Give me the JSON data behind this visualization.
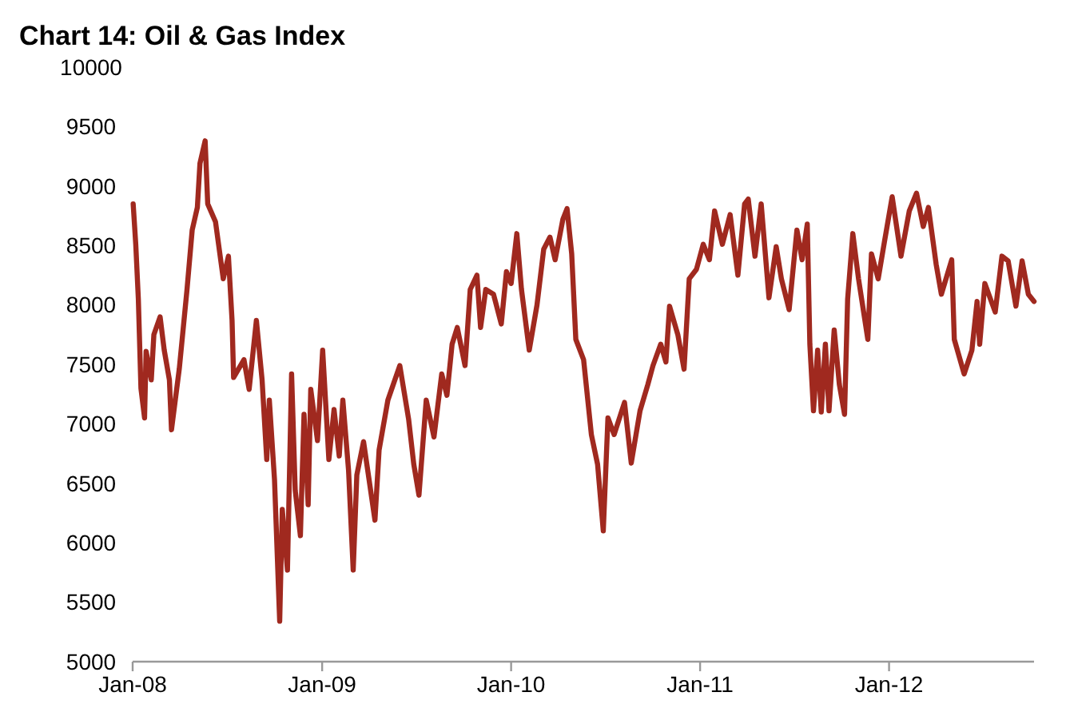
{
  "chart_data": {
    "type": "line",
    "title": "Chart 14: Oil & Gas Index",
    "x": [
      "2008-01-02",
      "2008-01-07",
      "2008-01-12",
      "2008-01-17",
      "2008-01-24",
      "2008-01-27",
      "2008-02-06",
      "2008-02-11",
      "2008-02-23",
      "2008-03-02",
      "2008-03-12",
      "2008-03-16",
      "2008-03-31",
      "2008-04-15",
      "2008-04-25",
      "2008-05-05",
      "2008-05-10",
      "2008-05-20",
      "2008-05-25",
      "2008-06-09",
      "2008-06-24",
      "2008-07-04",
      "2008-07-11",
      "2008-07-14",
      "2008-08-03",
      "2008-08-13",
      "2008-08-27",
      "2008-09-07",
      "2008-09-16",
      "2008-09-21",
      "2008-10-01",
      "2008-10-11",
      "2008-10-16",
      "2008-10-26",
      "2008-11-03",
      "2008-11-10",
      "2008-11-20",
      "2008-11-27",
      "2008-12-05",
      "2008-12-10",
      "2008-12-23",
      "2009-01-02",
      "2009-01-14",
      "2009-01-24",
      "2009-02-03",
      "2009-02-10",
      "2009-02-21",
      "2009-03-02",
      "2009-03-09",
      "2009-03-22",
      "2009-04-13",
      "2009-04-21",
      "2009-05-08",
      "2009-05-31",
      "2009-06-17",
      "2009-06-27",
      "2009-07-07",
      "2009-07-21",
      "2009-08-05",
      "2009-08-20",
      "2009-08-30",
      "2009-09-09",
      "2009-09-19",
      "2009-10-04",
      "2009-10-14",
      "2009-10-27",
      "2009-11-03",
      "2009-11-13",
      "2009-11-28",
      "2009-12-13",
      "2009-12-23",
      "2010-01-01",
      "2010-01-12",
      "2010-01-21",
      "2010-02-05",
      "2010-02-20",
      "2010-03-05",
      "2010-03-17",
      "2010-03-27",
      "2010-04-11",
      "2010-04-19",
      "2010-04-28",
      "2010-05-06",
      "2010-05-21",
      "2010-06-05",
      "2010-06-17",
      "2010-06-28",
      "2010-07-07",
      "2010-07-19",
      "2010-08-08",
      "2010-08-21",
      "2010-09-07",
      "2010-09-22",
      "2010-10-02",
      "2010-10-17",
      "2010-10-27",
      "2010-11-03",
      "2010-11-19",
      "2010-12-01",
      "2010-12-11",
      "2010-12-25",
      "2011-01-07",
      "2011-01-19",
      "2011-01-29",
      "2011-02-13",
      "2011-02-28",
      "2011-03-15",
      "2011-03-28",
      "2011-04-04",
      "2011-04-17",
      "2011-04-29",
      "2011-05-14",
      "2011-05-28",
      "2011-06-07",
      "2011-06-22",
      "2011-07-07",
      "2011-07-17",
      "2011-07-27",
      "2011-08-01",
      "2011-08-08",
      "2011-08-16",
      "2011-08-23",
      "2011-08-31",
      "2011-09-07",
      "2011-09-17",
      "2011-09-27",
      "2011-10-07",
      "2011-10-13",
      "2011-10-23",
      "2011-11-03",
      "2011-11-21",
      "2011-11-28",
      "2011-12-11",
      "2011-12-23",
      "2012-01-07",
      "2012-01-24",
      "2012-02-09",
      "2012-02-23",
      "2012-03-07",
      "2012-03-17",
      "2012-04-01",
      "2012-04-11",
      "2012-05-01",
      "2012-05-06",
      "2012-05-25",
      "2012-06-09",
      "2012-06-19",
      "2012-06-24",
      "2012-07-04",
      "2012-07-24",
      "2012-08-06",
      "2012-08-18",
      "2012-09-02",
      "2012-09-14",
      "2012-09-26",
      "2012-10-07"
    ],
    "series": [
      {
        "color": "#a0291f",
        "values": [
          8850,
          8510,
          8050,
          7300,
          7050,
          7610,
          7370,
          7750,
          7900,
          7620,
          7370,
          6950,
          7460,
          8130,
          8630,
          8820,
          9190,
          9380,
          8850,
          8700,
          8220,
          8410,
          7870,
          7390,
          7540,
          7290,
          7870,
          7370,
          6700,
          7200,
          6530,
          5340,
          6280,
          5770,
          7420,
          6440,
          6060,
          7080,
          6320,
          7290,
          6860,
          7620,
          6700,
          7120,
          6730,
          7200,
          6610,
          5770,
          6570,
          6850,
          6190,
          6780,
          7200,
          7490,
          7040,
          6660,
          6400,
          7200,
          6890,
          7420,
          7240,
          7670,
          7810,
          7490,
          8130,
          8250,
          7810,
          8130,
          8090,
          7840,
          8280,
          8180,
          8600,
          8130,
          7620,
          8000,
          8470,
          8570,
          8380,
          8720,
          8810,
          8430,
          7710,
          7540,
          6910,
          6660,
          6100,
          7050,
          6910,
          7180,
          6670,
          7110,
          7330,
          7490,
          7670,
          7520,
          7990,
          7750,
          7460,
          8220,
          8300,
          8510,
          8380,
          8790,
          8510,
          8760,
          8250,
          8850,
          8890,
          8410,
          8850,
          8060,
          8490,
          8220,
          7960,
          8630,
          8380,
          8680,
          7670,
          7110,
          7620,
          7100,
          7670,
          7110,
          7790,
          7330,
          7080,
          8050,
          8600,
          8220,
          7710,
          8430,
          8220,
          8530,
          8910,
          8410,
          8790,
          8940,
          8660,
          8820,
          8340,
          8090,
          8380,
          7710,
          7420,
          7620,
          8030,
          7670,
          8180,
          7940,
          8410,
          8370,
          7990,
          8370,
          8090,
          8030
        ]
      }
    ],
    "xlim": [
      "2008-01-01",
      "2012-10-07"
    ],
    "xticks": [
      {
        "value": "2008-01-01",
        "label": "Jan-08"
      },
      {
        "value": "2009-01-01",
        "label": "Jan-09"
      },
      {
        "value": "2010-01-01",
        "label": "Jan-10"
      },
      {
        "value": "2011-01-01",
        "label": "Jan-11"
      },
      {
        "value": "2012-01-01",
        "label": "Jan-12"
      }
    ],
    "ylim": [
      5000,
      10000
    ],
    "yticks": [
      {
        "value": 5000,
        "label": "5000"
      },
      {
        "value": 5500,
        "label": "5500"
      },
      {
        "value": 6000,
        "label": "6000"
      },
      {
        "value": 6500,
        "label": "6500"
      },
      {
        "value": 7000,
        "label": "7000"
      },
      {
        "value": 7500,
        "label": "7500"
      },
      {
        "value": 8000,
        "label": "8000"
      },
      {
        "value": 8500,
        "label": "8500"
      },
      {
        "value": 9000,
        "label": "9000"
      },
      {
        "value": 9500,
        "label": "9500"
      },
      {
        "value": 10000,
        "label": "10000"
      }
    ]
  }
}
